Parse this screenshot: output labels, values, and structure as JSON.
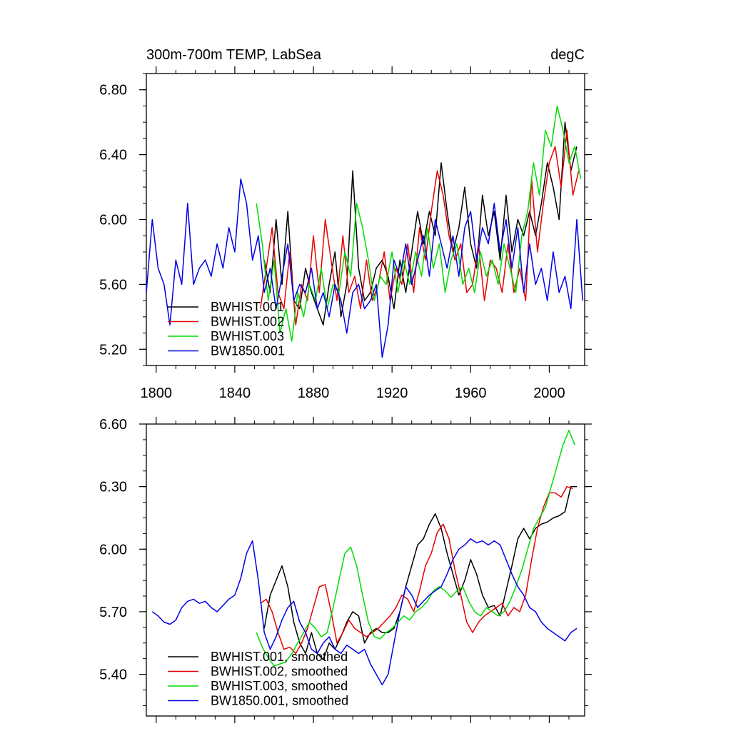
{
  "chart_data": [
    {
      "type": "line",
      "title": "300m-700m TEMP, LabSea",
      "units": "degC",
      "xlim": [
        1795,
        2018
      ],
      "ylim": [
        5.1,
        6.9
      ],
      "xticks": [
        1800,
        1840,
        1880,
        1920,
        1960,
        2000
      ],
      "xtick_labels": [
        "1800",
        "1840",
        "1880",
        "1920",
        "1960",
        "2000"
      ],
      "yticks": [
        5.2,
        5.6,
        6.0,
        6.4,
        6.8
      ],
      "ytick_labels": [
        "5.20",
        "5.60",
        "6.00",
        "6.40",
        "6.80"
      ],
      "grid": false,
      "legend_position": "bottom-left",
      "series": [
        {
          "name": "BWHIST.001",
          "color": "#000000",
          "x": [
            1855,
            1858,
            1861,
            1864,
            1867,
            1870,
            1873,
            1876,
            1879,
            1882,
            1885,
            1888,
            1891,
            1894,
            1897,
            1900,
            1903,
            1906,
            1909,
            1912,
            1915,
            1918,
            1921,
            1924,
            1927,
            1930,
            1933,
            1936,
            1939,
            1942,
            1945,
            1948,
            1951,
            1954,
            1957,
            1960,
            1963,
            1966,
            1969,
            1972,
            1975,
            1978,
            1981,
            1984,
            1987,
            1990,
            1993,
            1996,
            1999,
            2002,
            2005,
            2008,
            2011,
            2014
          ],
          "values": [
            5.75,
            5.55,
            6.0,
            5.6,
            6.05,
            5.5,
            5.45,
            5.7,
            5.55,
            5.45,
            5.35,
            5.6,
            5.8,
            5.4,
            5.6,
            6.3,
            5.7,
            5.5,
            5.55,
            5.7,
            5.75,
            5.65,
            5.45,
            5.75,
            5.55,
            5.8,
            6.05,
            5.85,
            6.05,
            5.9,
            6.35,
            6.05,
            5.8,
            5.95,
            6.2,
            5.85,
            5.7,
            6.15,
            5.9,
            6.05,
            5.75,
            6.15,
            5.8,
            6.0,
            5.9,
            6.05,
            5.9,
            6.1,
            6.35,
            6.2,
            6.0,
            6.6,
            6.3,
            6.45
          ]
        },
        {
          "name": "BWHIST.002",
          "color": "#e60000",
          "x": [
            1853,
            1856,
            1859,
            1862,
            1865,
            1868,
            1871,
            1874,
            1877,
            1880,
            1883,
            1886,
            1889,
            1892,
            1895,
            1898,
            1901,
            1904,
            1907,
            1910,
            1913,
            1916,
            1919,
            1922,
            1925,
            1928,
            1931,
            1934,
            1937,
            1940,
            1943,
            1946,
            1949,
            1952,
            1955,
            1958,
            1961,
            1964,
            1967,
            1970,
            1973,
            1976,
            1979,
            1982,
            1985,
            1988,
            1991,
            1994,
            1997,
            2000,
            2003,
            2006,
            2009,
            2012,
            2015
          ],
          "values": [
            5.45,
            5.7,
            5.95,
            5.55,
            5.45,
            5.8,
            5.35,
            5.6,
            5.5,
            5.9,
            5.55,
            6.0,
            5.75,
            5.5,
            5.9,
            5.55,
            5.65,
            5.45,
            5.75,
            5.5,
            5.6,
            5.8,
            5.5,
            5.7,
            5.6,
            5.85,
            5.55,
            5.95,
            5.75,
            6.05,
            6.3,
            6.15,
            5.9,
            5.75,
            5.85,
            5.55,
            5.6,
            5.85,
            5.5,
            5.75,
            5.7,
            5.55,
            5.85,
            5.55,
            5.7,
            5.5,
            6.25,
            5.8,
            6.1,
            6.35,
            6.45,
            6.2,
            6.55,
            6.15,
            6.3
          ]
        },
        {
          "name": "BWHIST.003",
          "color": "#00dc00",
          "x": [
            1851,
            1854,
            1857,
            1860,
            1863,
            1866,
            1869,
            1872,
            1875,
            1878,
            1881,
            1884,
            1887,
            1890,
            1893,
            1896,
            1899,
            1902,
            1905,
            1908,
            1911,
            1914,
            1917,
            1920,
            1923,
            1926,
            1929,
            1932,
            1935,
            1938,
            1941,
            1944,
            1947,
            1950,
            1953,
            1956,
            1959,
            1962,
            1965,
            1968,
            1971,
            1974,
            1977,
            1980,
            1983,
            1986,
            1989,
            1992,
            1995,
            1998,
            2001,
            2004,
            2007,
            2010,
            2013,
            2016
          ],
          "values": [
            6.1,
            5.85,
            5.5,
            5.75,
            5.3,
            5.45,
            5.25,
            5.55,
            5.4,
            5.6,
            5.5,
            5.7,
            5.45,
            5.6,
            5.55,
            5.8,
            5.65,
            6.1,
            5.95,
            5.75,
            5.5,
            5.65,
            5.6,
            5.8,
            5.55,
            5.75,
            5.6,
            5.8,
            5.65,
            5.95,
            5.7,
            5.85,
            5.55,
            5.75,
            5.85,
            5.6,
            5.7,
            5.55,
            5.8,
            5.65,
            5.75,
            5.6,
            5.85,
            5.7,
            5.55,
            5.9,
            6.05,
            6.35,
            6.15,
            6.55,
            6.45,
            6.7,
            6.55,
            6.35,
            6.45,
            6.25
          ]
        },
        {
          "name": "BW1850.001",
          "color": "#0000e6",
          "x": [
            1795,
            1798,
            1801,
            1804,
            1807,
            1810,
            1813,
            1816,
            1819,
            1822,
            1825,
            1828,
            1831,
            1834,
            1837,
            1840,
            1843,
            1846,
            1849,
            1852,
            1855,
            1858,
            1861,
            1864,
            1867,
            1870,
            1873,
            1876,
            1879,
            1882,
            1885,
            1888,
            1891,
            1894,
            1897,
            1900,
            1903,
            1906,
            1909,
            1912,
            1915,
            1918,
            1921,
            1924,
            1927,
            1930,
            1933,
            1936,
            1939,
            1942,
            1945,
            1948,
            1951,
            1954,
            1957,
            1960,
            1963,
            1966,
            1969,
            1972,
            1975,
            1978,
            1981,
            1984,
            1987,
            1990,
            1993,
            1996,
            1999,
            2002,
            2005,
            2008,
            2011,
            2014,
            2017
          ],
          "values": [
            5.55,
            6.0,
            5.7,
            5.6,
            5.35,
            5.75,
            5.6,
            6.1,
            5.6,
            5.7,
            5.75,
            5.65,
            5.85,
            5.7,
            5.95,
            5.8,
            6.25,
            6.1,
            5.75,
            5.9,
            5.55,
            5.7,
            5.45,
            5.65,
            5.85,
            5.5,
            5.6,
            5.55,
            5.7,
            5.45,
            5.55,
            5.4,
            5.6,
            5.5,
            5.3,
            5.55,
            5.6,
            5.45,
            5.5,
            5.6,
            5.15,
            5.35,
            5.75,
            5.65,
            5.85,
            5.6,
            5.75,
            5.9,
            5.65,
            6.0,
            5.85,
            5.7,
            5.9,
            5.65,
            5.95,
            6.05,
            5.75,
            5.95,
            5.85,
            6.1,
            5.8,
            6.0,
            5.7,
            5.95,
            5.55,
            5.85,
            5.6,
            5.7,
            5.5,
            5.8,
            5.55,
            5.65,
            5.45,
            6.0,
            5.5
          ]
        }
      ]
    },
    {
      "type": "line",
      "title": "",
      "xlim": [
        1795,
        2018
      ],
      "ylim": [
        5.2,
        6.6
      ],
      "xticks": [
        1800,
        1840,
        1880,
        1920,
        1960,
        2000
      ],
      "yticks": [
        5.4,
        5.7,
        6.0,
        6.3,
        6.6
      ],
      "ytick_labels": [
        "5.40",
        "5.70",
        "6.00",
        "6.30",
        "6.60"
      ],
      "grid": false,
      "legend_position": "bottom-left",
      "series": [
        {
          "name": "BWHIST.001, smoothed",
          "color": "#000000",
          "x": [
            1855,
            1858,
            1861,
            1864,
            1867,
            1870,
            1873,
            1876,
            1879,
            1882,
            1885,
            1888,
            1891,
            1894,
            1897,
            1900,
            1903,
            1906,
            1909,
            1912,
            1915,
            1918,
            1921,
            1924,
            1927,
            1930,
            1933,
            1936,
            1939,
            1942,
            1945,
            1948,
            1951,
            1954,
            1957,
            1960,
            1963,
            1966,
            1969,
            1972,
            1975,
            1978,
            1981,
            1984,
            1987,
            1990,
            1993,
            1996,
            1999,
            2002,
            2005,
            2008,
            2011,
            2014
          ],
          "values": [
            5.62,
            5.78,
            5.85,
            5.92,
            5.82,
            5.65,
            5.55,
            5.5,
            5.6,
            5.5,
            5.47,
            5.55,
            5.52,
            5.58,
            5.65,
            5.7,
            5.68,
            5.55,
            5.6,
            5.62,
            5.6,
            5.6,
            5.62,
            5.7,
            5.82,
            5.92,
            6.02,
            6.05,
            6.12,
            6.17,
            6.1,
            5.98,
            5.88,
            5.78,
            5.85,
            5.95,
            5.88,
            5.78,
            5.72,
            5.73,
            5.68,
            5.8,
            5.92,
            6.05,
            6.1,
            6.05,
            6.1,
            6.12,
            6.13,
            6.15,
            6.16,
            6.18,
            6.3,
            6.3
          ]
        },
        {
          "name": "BWHIST.002, smoothed",
          "color": "#e60000",
          "x": [
            1853,
            1856,
            1859,
            1862,
            1865,
            1868,
            1871,
            1874,
            1877,
            1880,
            1883,
            1886,
            1889,
            1892,
            1895,
            1898,
            1901,
            1904,
            1907,
            1910,
            1913,
            1916,
            1919,
            1922,
            1925,
            1928,
            1931,
            1934,
            1937,
            1940,
            1943,
            1946,
            1949,
            1952,
            1955,
            1958,
            1961,
            1964,
            1967,
            1970,
            1973,
            1976,
            1979,
            1982,
            1985,
            1988,
            1991,
            1994,
            1997,
            2000,
            2003,
            2006,
            2009,
            2012
          ],
          "values": [
            5.74,
            5.76,
            5.7,
            5.6,
            5.52,
            5.53,
            5.5,
            5.55,
            5.62,
            5.72,
            5.82,
            5.83,
            5.7,
            5.55,
            5.6,
            5.66,
            5.62,
            5.6,
            5.58,
            5.6,
            5.62,
            5.65,
            5.68,
            5.72,
            5.78,
            5.76,
            5.7,
            5.8,
            5.92,
            5.98,
            6.08,
            6.12,
            6.05,
            5.9,
            5.78,
            5.65,
            5.6,
            5.65,
            5.68,
            5.7,
            5.72,
            5.74,
            5.68,
            5.72,
            5.7,
            5.78,
            5.95,
            6.1,
            6.2,
            6.27,
            6.27,
            6.25,
            6.3,
            6.29
          ]
        },
        {
          "name": "BWHIST.003, smoothed",
          "color": "#00dc00",
          "x": [
            1851,
            1854,
            1857,
            1860,
            1863,
            1866,
            1869,
            1872,
            1875,
            1878,
            1881,
            1884,
            1887,
            1890,
            1893,
            1896,
            1899,
            1902,
            1905,
            1908,
            1911,
            1914,
            1917,
            1920,
            1923,
            1926,
            1929,
            1932,
            1935,
            1938,
            1941,
            1944,
            1947,
            1950,
            1953,
            1956,
            1959,
            1962,
            1965,
            1968,
            1971,
            1974,
            1977,
            1980,
            1983,
            1986,
            1989,
            1992,
            1995,
            1998,
            2001,
            2004,
            2007,
            2010,
            2013
          ],
          "values": [
            5.6,
            5.53,
            5.48,
            5.44,
            5.45,
            5.46,
            5.5,
            5.55,
            5.6,
            5.65,
            5.62,
            5.58,
            5.6,
            5.72,
            5.85,
            5.98,
            6.01,
            5.92,
            5.78,
            5.65,
            5.58,
            5.57,
            5.6,
            5.62,
            5.65,
            5.68,
            5.66,
            5.7,
            5.72,
            5.75,
            5.8,
            5.82,
            5.8,
            5.77,
            5.8,
            5.82,
            5.75,
            5.7,
            5.68,
            5.72,
            5.7,
            5.68,
            5.7,
            5.75,
            5.82,
            5.9,
            6.0,
            6.1,
            6.15,
            6.2,
            6.3,
            6.4,
            6.5,
            6.57,
            6.5
          ]
        },
        {
          "name": "BW1850.001, smoothed",
          "color": "#0000e6",
          "x": [
            1798,
            1801,
            1804,
            1807,
            1810,
            1813,
            1816,
            1819,
            1822,
            1825,
            1828,
            1831,
            1834,
            1837,
            1840,
            1843,
            1846,
            1849,
            1852,
            1855,
            1858,
            1861,
            1864,
            1867,
            1870,
            1873,
            1876,
            1879,
            1882,
            1885,
            1888,
            1891,
            1894,
            1897,
            1900,
            1903,
            1906,
            1909,
            1912,
            1915,
            1918,
            1921,
            1924,
            1927,
            1930,
            1933,
            1936,
            1939,
            1942,
            1945,
            1948,
            1951,
            1954,
            1957,
            1960,
            1963,
            1966,
            1969,
            1972,
            1975,
            1978,
            1981,
            1984,
            1987,
            1990,
            1993,
            1996,
            1999,
            2002,
            2005,
            2008,
            2011,
            2014
          ],
          "values": [
            5.7,
            5.68,
            5.65,
            5.64,
            5.66,
            5.72,
            5.75,
            5.76,
            5.74,
            5.75,
            5.72,
            5.7,
            5.73,
            5.76,
            5.78,
            5.86,
            5.98,
            6.04,
            5.85,
            5.6,
            5.52,
            5.58,
            5.66,
            5.72,
            5.75,
            5.65,
            5.6,
            5.52,
            5.5,
            5.55,
            5.58,
            5.52,
            5.5,
            5.54,
            5.52,
            5.5,
            5.52,
            5.45,
            5.4,
            5.35,
            5.4,
            5.55,
            5.7,
            5.82,
            5.78,
            5.72,
            5.75,
            5.78,
            5.8,
            5.82,
            5.88,
            5.95,
            6.0,
            6.02,
            6.05,
            6.03,
            6.04,
            6.02,
            6.04,
            6.02,
            5.95,
            5.88,
            5.82,
            5.78,
            5.72,
            5.7,
            5.65,
            5.62,
            5.6,
            5.58,
            5.56,
            5.6,
            5.62
          ]
        }
      ]
    }
  ]
}
